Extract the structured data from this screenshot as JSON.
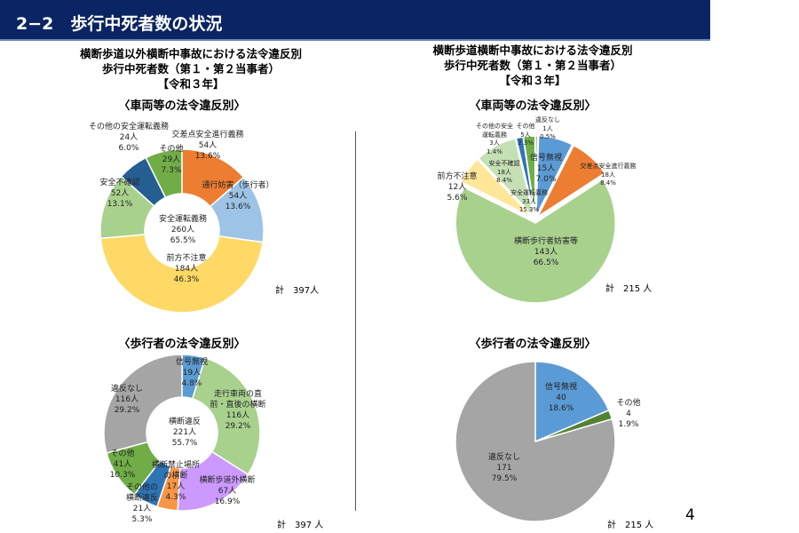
{
  "header": {
    "title": "2−2　歩行中死者数の状況"
  },
  "left": {
    "title": "横断歩道以外横断中事故における法令違反別\n歩行中死者数（第１・第２当事者）\n【令和３年】"
  },
  "right": {
    "title": "横断歩道横断中事故における法令違反別\n歩行中死者数（第１・第２当事者）\n【令和３年】"
  },
  "page_number": "4",
  "chart_data": [
    {
      "type": "pie",
      "id": "tl",
      "style": "donut",
      "subtitle": "〈車両等の法令違反別〉",
      "total_label": "計　397人",
      "center_label": "安全運転義務\n260人\n65.5%",
      "slices": [
        {
          "label": "交差点安全進行義務",
          "count": 54,
          "percent": 13.6,
          "text": "交差点安全進行義務\n54人\n13.6%",
          "color": "#ED7D31"
        },
        {
          "label": "通行妨害（歩行者）",
          "count": 54,
          "percent": 13.6,
          "text": "通行妨害（歩行者）\n54人\n13.6%",
          "color": "#9DC3E6"
        },
        {
          "label": "前方不注意",
          "count": 184,
          "percent": 46.3,
          "text": "前方不注意\n184人\n46.3%",
          "color": "#FFD966"
        },
        {
          "label": "安全不確認",
          "count": 52,
          "percent": 13.1,
          "text": "安全不確認\n52人\n13.1%",
          "color": "#A9D18E"
        },
        {
          "label": "その他の安全運転義務",
          "count": 24,
          "percent": 6.0,
          "text": "その他の安全運転義務\n24人\n6.0%",
          "color": "#255E91"
        },
        {
          "label": "その他",
          "count": 29,
          "percent": 7.3,
          "text": "その他\n29人\n7.3%",
          "color": "#70AD47"
        }
      ]
    },
    {
      "type": "pie",
      "id": "tr",
      "style": "exploded",
      "subtitle": "〈車両等の法令違反別〉",
      "total_label": "計　215 人",
      "center_label": "安全運転義務\n33人\n15.3%",
      "slices": [
        {
          "label": "違反なし",
          "count": 1,
          "percent": 0.5,
          "text": "違反なし\n1人\n0.5%",
          "color": "#A5A5A5"
        },
        {
          "label": "信号無視",
          "count": 15,
          "percent": 7.0,
          "text": "信号無視\n15人\n7.0%",
          "color": "#5B9BD5"
        },
        {
          "label": "交差点安全進行義務",
          "count": 18,
          "percent": 8.4,
          "text": "交差点安全進行義務\n18人\n8.4%",
          "color": "#ED7D31"
        },
        {
          "label": "横断歩行者妨害等",
          "count": 143,
          "percent": 66.5,
          "text": "横断歩行者妨害等\n143人\n66.5%",
          "color": "#A9D18E"
        },
        {
          "label": "前方不注意",
          "count": 12,
          "percent": 5.6,
          "text": "前方不注意\n12人\n5.6%",
          "color": "#FFE699"
        },
        {
          "label": "安全不確認",
          "count": 18,
          "percent": 8.4,
          "text": "安全不確認\n18人\n8.4%",
          "color": "#C5E0B4"
        },
        {
          "label": "その他の安全運転義務",
          "count": 3,
          "percent": 1.4,
          "text": "その他の安全\n運転義務\n3人\n1.4%",
          "color": "#2E75B6"
        },
        {
          "label": "その他",
          "count": 5,
          "percent": 2.3,
          "text": "その他\n5人\n2.3%",
          "color": "#70AD47"
        }
      ]
    },
    {
      "type": "pie",
      "id": "bl",
      "style": "donut",
      "subtitle": "〈歩行者の法令違反別〉",
      "total_label": "計　397 人",
      "center_label": "横断違反\n221人\n55.7%",
      "slices": [
        {
          "label": "信号無視",
          "count": 19,
          "percent": 4.8,
          "text": "信号無視\n19人\n4.8%",
          "color": "#5B9BD5"
        },
        {
          "label": "走行車両の直前・直後の横断",
          "count": 116,
          "percent": 29.2,
          "text": "走行車両の直\n前・直後の横断\n116人\n29.2%",
          "color": "#A9D18E"
        },
        {
          "label": "横断歩道外横断",
          "count": 67,
          "percent": 16.9,
          "text": "横断歩道外横断\n67人\n16.9%",
          "color": "#CC99FF"
        },
        {
          "label": "横断禁止場所の横断",
          "count": 17,
          "percent": 4.3,
          "text": "横断禁止場所\nの横断\n17人\n4.3%",
          "color": "#F79646"
        },
        {
          "label": "その他の横断違反",
          "count": 21,
          "percent": 5.3,
          "text": "その他の\n横断違反\n21人\n5.3%",
          "color": "#2E75B6"
        },
        {
          "label": "その他",
          "count": 41,
          "percent": 10.3,
          "text": "その他\n41人\n10.3%",
          "color": "#70AD47"
        },
        {
          "label": "違反なし",
          "count": 116,
          "percent": 29.2,
          "text": "違反なし\n116人\n29.2%",
          "color": "#A5A5A5"
        }
      ]
    },
    {
      "type": "pie",
      "id": "br",
      "style": "pie",
      "subtitle": "〈歩行者の法令違反別〉",
      "total_label": "計　215 人",
      "slices": [
        {
          "label": "信号無視",
          "count": 40,
          "percent": 18.6,
          "text": "信号無視\n40\n18.6%",
          "color": "#5B9BD5"
        },
        {
          "label": "その他",
          "count": 4,
          "percent": 1.9,
          "text": "その他\n4\n1.9%",
          "color": "#548235"
        },
        {
          "label": "違反なし",
          "count": 171,
          "percent": 79.5,
          "text": "違反なし\n171\n79.5%",
          "color": "#A5A5A5"
        }
      ]
    }
  ]
}
